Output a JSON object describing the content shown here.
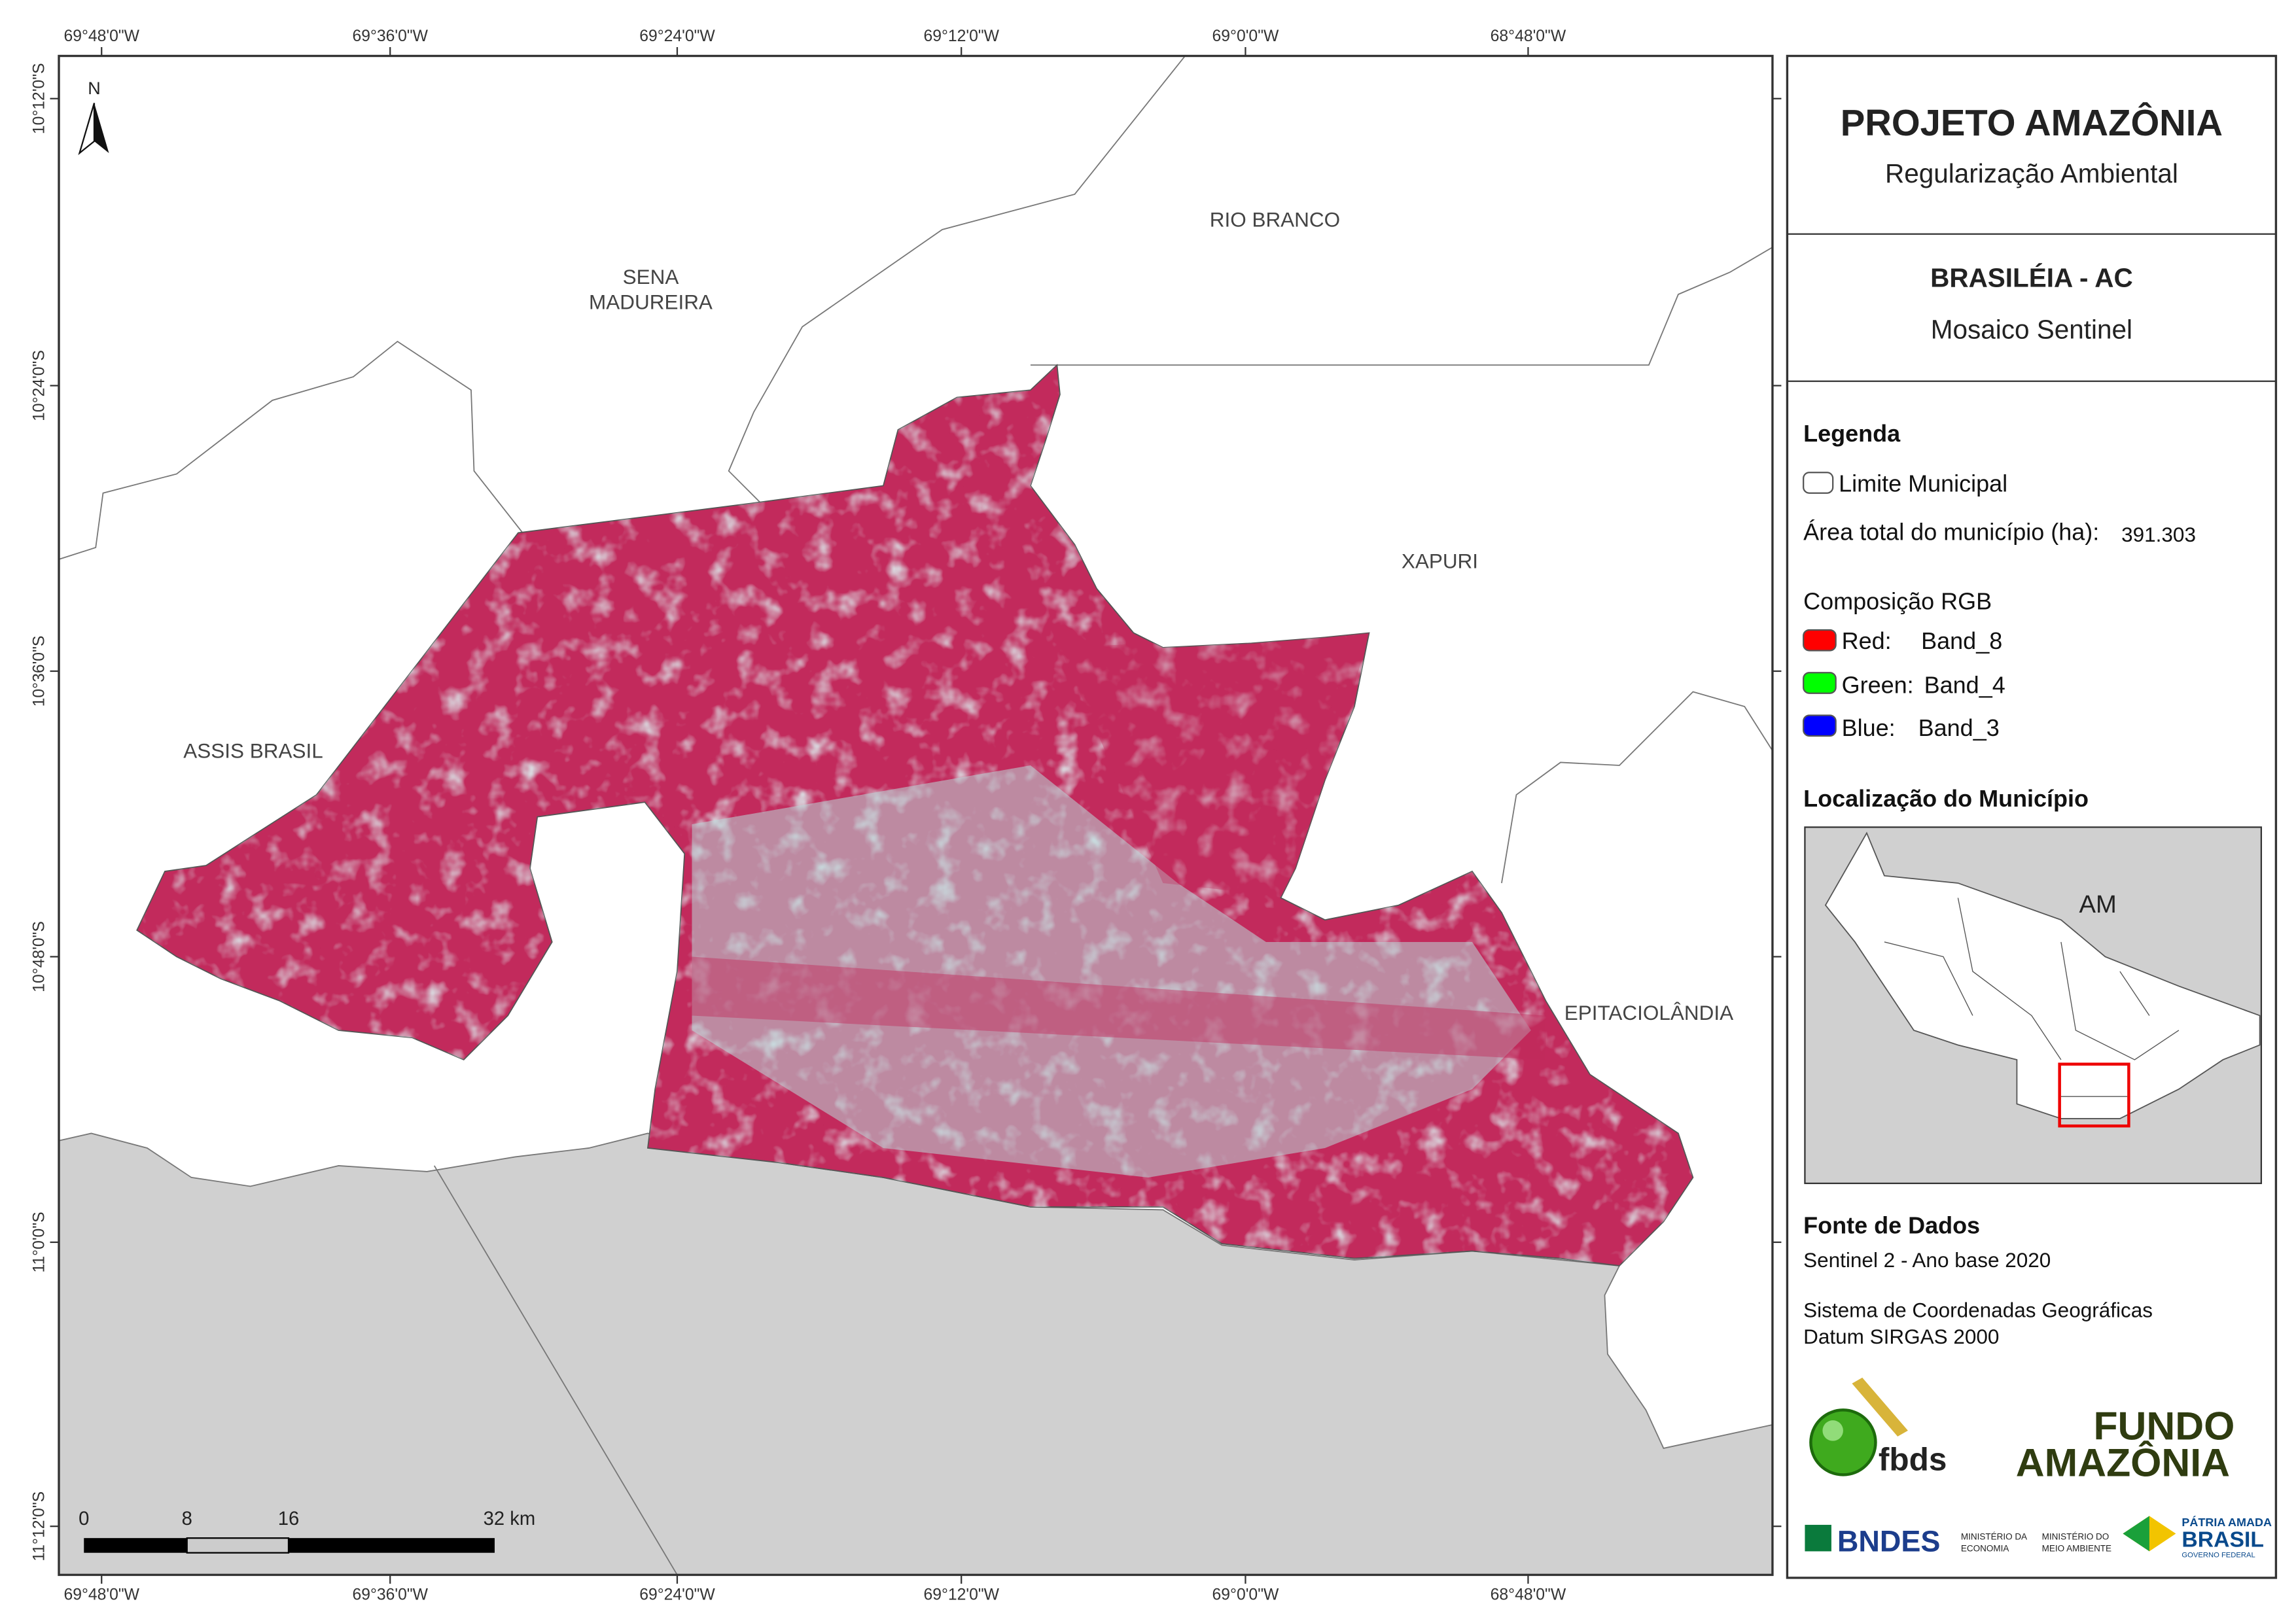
{
  "map": {
    "lon_labels": [
      "69°48'0\"W",
      "69°36'0\"W",
      "69°24'0\"W",
      "69°12'0\"W",
      "69°0'0\"W",
      "68°48'0\"W"
    ],
    "lat_labels": [
      "10°12'0\"S",
      "10°24'0\"S",
      "10°36'0\"S",
      "10°48'0\"S",
      "11°0'0\"S",
      "11°12'0\"S"
    ],
    "north": "N",
    "places": [
      "RIO BRANCO",
      "SENA",
      "MADUREIRA",
      "XAPURI",
      "ASSIS BRASIL",
      "EPITACIOLÂNDIA"
    ],
    "scale_labels": [
      "0",
      "8",
      "16",
      "32 km"
    ]
  },
  "panel": {
    "title": "PROJETO AMAZÔNIA",
    "subtitle": "Regularização Ambiental",
    "municipality": "BRASILÉIA - AC",
    "product": "Mosaico Sentinel",
    "legend_title": "Legenda",
    "legend_boundary": "Limite Municipal",
    "area_label": "Área total do município (ha):",
    "area_value": "391.303",
    "rgb_title": "Composição RGB",
    "rgb": [
      [
        "Red:",
        "Band_8"
      ],
      [
        "Green:",
        "Band_4"
      ],
      [
        "Blue:",
        "Band_3"
      ]
    ],
    "location_title": "Localização do Município",
    "inset_label": "AM",
    "sources_title": "Fonte de Dados",
    "source": "Sentinel 2 - Ano base 2020",
    "crs": "Sistema de Coordenadas Geográficas",
    "datum": "Datum SIRGAS 2000",
    "logos": [
      "fbds",
      "FUNDO",
      "AMAZÔNIA",
      "BNDES",
      "MINISTÉRIO DA",
      "ECONOMIA",
      "MINISTÉRIO DO",
      "MEIO AMBIENTE",
      "PÁTRIA AMADA",
      "BRASIL",
      "GOVERNO FEDERAL"
    ]
  }
}
